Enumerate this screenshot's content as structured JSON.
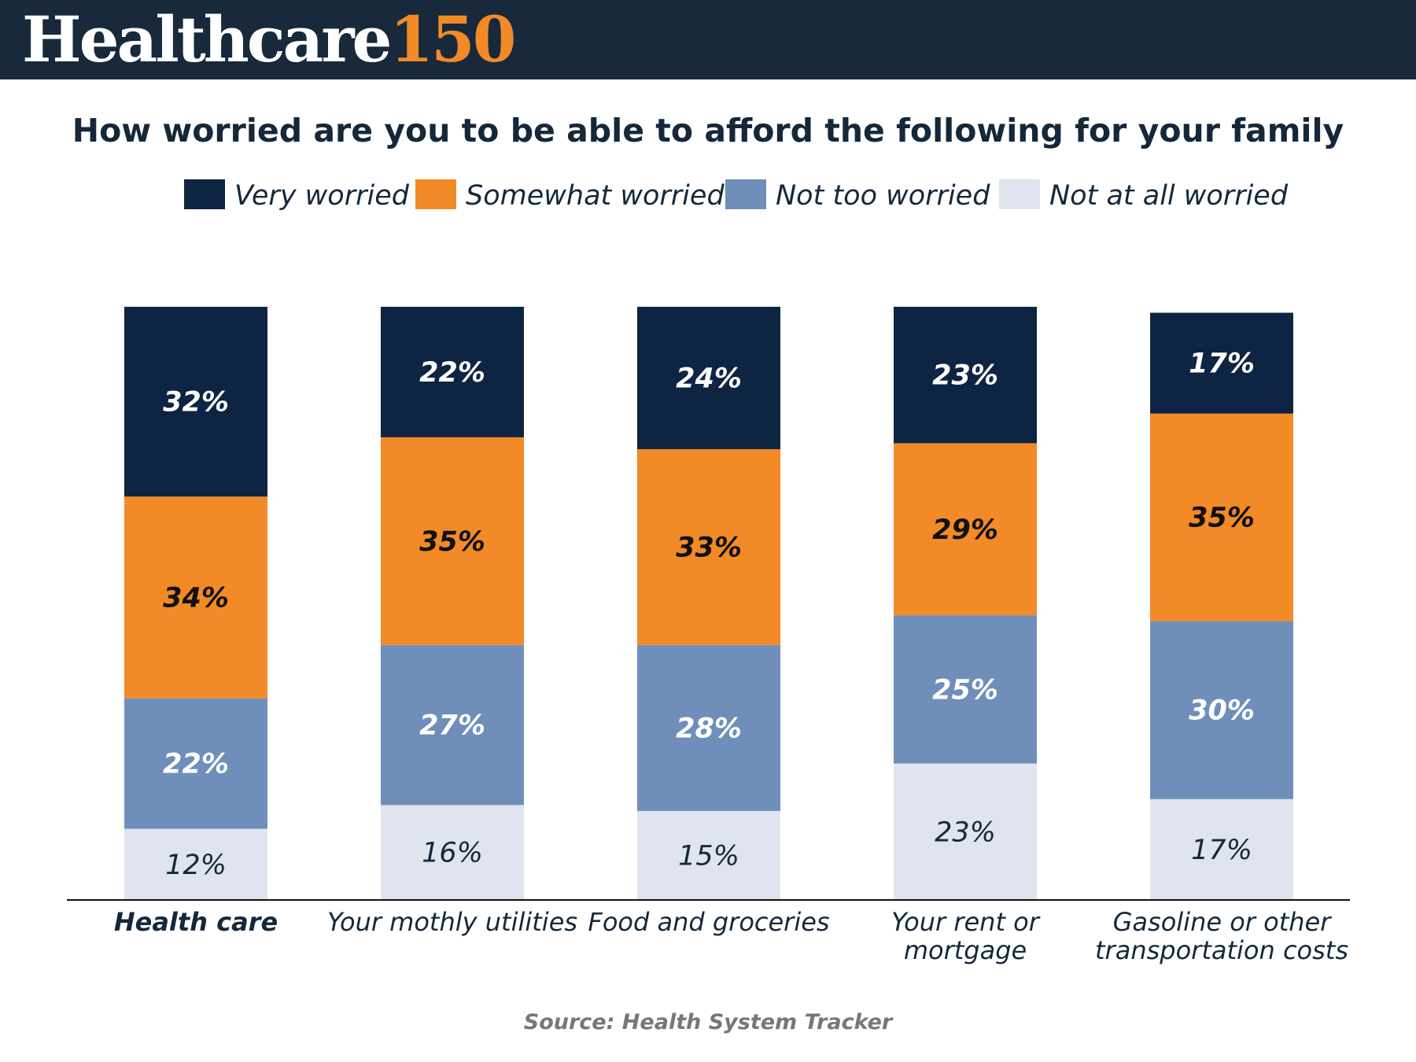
{
  "brand": {
    "word": "Healthcare",
    "number": "150",
    "colors": {
      "bar": "#17293a",
      "word": "#ffffff",
      "number": "#f28a27"
    }
  },
  "chart_data": {
    "type": "bar",
    "stacked": true,
    "title": "How worried are you to be able to afford the following for your family",
    "source": "Source: Health System Tracker",
    "categories": [
      [
        "Health care"
      ],
      [
        "Your mothly utilities"
      ],
      [
        "Food and groceries"
      ],
      [
        "Your rent or",
        "mortgage"
      ],
      [
        "Gasoline or other",
        "transportation costs"
      ]
    ],
    "highlight_category": 0,
    "series": [
      {
        "name": "Very worried",
        "color": "#0e2443",
        "label_color": "#ffffff",
        "label_bold": true,
        "values": [
          32,
          22,
          24,
          23,
          17
        ]
      },
      {
        "name": "Somewhat worried",
        "color": "#f28a27",
        "label_color": "#111111",
        "label_bold": true,
        "values": [
          34,
          35,
          33,
          29,
          35
        ]
      },
      {
        "name": "Not too worried",
        "color": "#6f8fba",
        "label_color": "#ffffff",
        "label_bold": true,
        "values": [
          22,
          27,
          28,
          25,
          30
        ]
      },
      {
        "name": "Not at all worried",
        "color": "#dfe4ee",
        "label_color": "#15283a",
        "label_bold": false,
        "values": [
          12,
          16,
          15,
          23,
          17
        ]
      }
    ],
    "value_suffix": "%",
    "ylim": [
      0,
      100
    ],
    "legend": "top-center",
    "grid": false
  }
}
